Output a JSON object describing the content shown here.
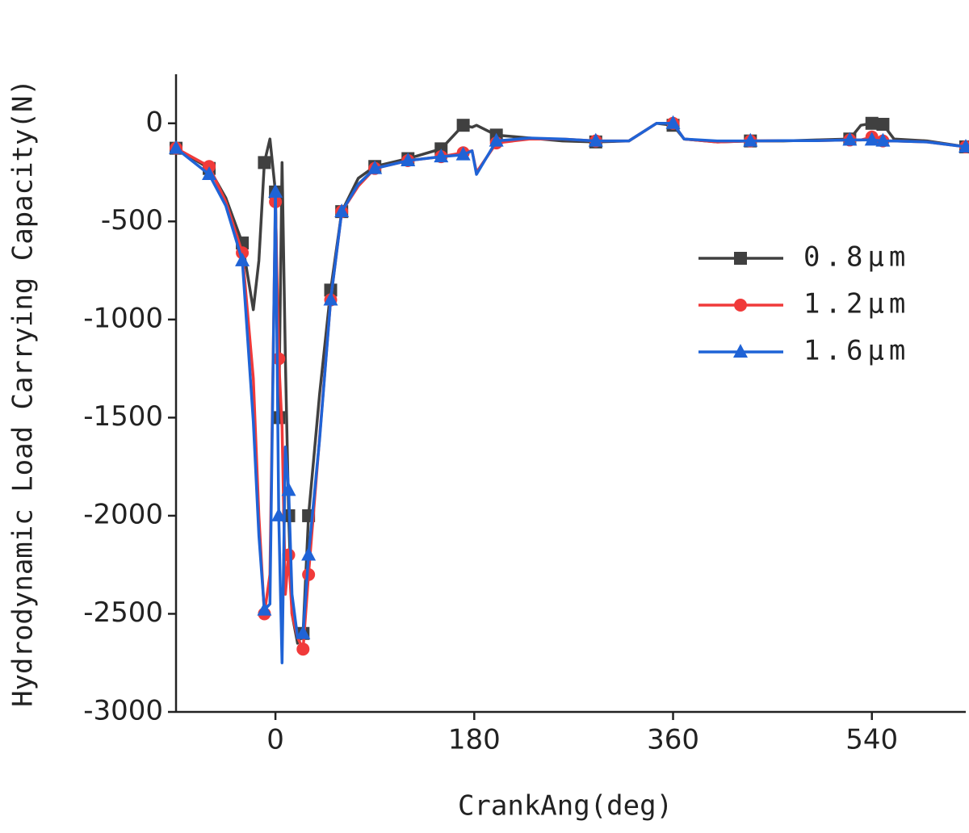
{
  "chart_data": {
    "type": "line",
    "xlabel": "CrankAng(deg)",
    "ylabel": "Hydrodynamic Load Carrying Capacity(N)",
    "x": [
      -90,
      -60,
      -45,
      -30,
      -20,
      -15,
      -10,
      -5,
      0,
      3,
      6,
      9,
      12,
      15,
      20,
      25,
      30,
      40,
      50,
      60,
      75,
      90,
      120,
      150,
      170,
      178,
      182,
      200,
      230,
      260,
      290,
      320,
      345,
      360,
      370,
      400,
      430,
      460,
      490,
      520,
      530,
      540,
      550,
      560,
      590,
      625
    ],
    "series": [
      {
        "name": "0.8μm",
        "color": "#404040",
        "marker": "square",
        "values": [
          -127,
          -230,
          -380,
          -610,
          -950,
          -700,
          -200,
          -80,
          -350,
          -1500,
          -200,
          -1200,
          -2000,
          -2500,
          -2650,
          -2600,
          -2000,
          -1380,
          -850,
          -450,
          -280,
          -220,
          -180,
          -130,
          -10,
          -20,
          -10,
          -60,
          -75,
          -90,
          -95,
          -90,
          0,
          -10,
          -80,
          -95,
          -90,
          -90,
          -85,
          -80,
          -10,
          0,
          -5,
          -80,
          -90,
          -120
        ]
      },
      {
        "name": "1.2μm",
        "color": "#f03a3a",
        "marker": "circle",
        "values": [
          -127,
          -220,
          -400,
          -660,
          -1300,
          -2000,
          -2500,
          -2300,
          -400,
          -1200,
          -1550,
          -2400,
          -2200,
          -2500,
          -2620,
          -2680,
          -2300,
          -1600,
          -900,
          -450,
          -320,
          -230,
          -190,
          -170,
          -150,
          -140,
          -250,
          -100,
          -80,
          -80,
          -90,
          -90,
          0,
          0,
          -80,
          -95,
          -90,
          -88,
          -88,
          -85,
          -85,
          -70,
          -90,
          -90,
          -95,
          -120
        ]
      },
      {
        "name": "1.6μm",
        "color": "#1f63d6",
        "marker": "triangle",
        "values": [
          -127,
          -260,
          -420,
          -700,
          -1520,
          -2100,
          -2480,
          -2450,
          -350,
          -2000,
          -2750,
          -1650,
          -1870,
          -2400,
          -2620,
          -2600,
          -2200,
          -1610,
          -900,
          -450,
          -310,
          -230,
          -190,
          -170,
          -160,
          -140,
          -260,
          -90,
          -75,
          -80,
          -90,
          -90,
          0,
          0,
          -80,
          -90,
          -90,
          -88,
          -88,
          -85,
          -85,
          -85,
          -90,
          -90,
          -95,
          -120
        ]
      }
    ],
    "xlim": [
      -90,
      625
    ],
    "xticks": [
      0,
      180,
      360,
      540
    ],
    "ylim": [
      -3000,
      250
    ],
    "yticks": [
      0,
      -500,
      -1000,
      -1500,
      -2000,
      -2500,
      -3000
    ],
    "legend": "upper right"
  }
}
